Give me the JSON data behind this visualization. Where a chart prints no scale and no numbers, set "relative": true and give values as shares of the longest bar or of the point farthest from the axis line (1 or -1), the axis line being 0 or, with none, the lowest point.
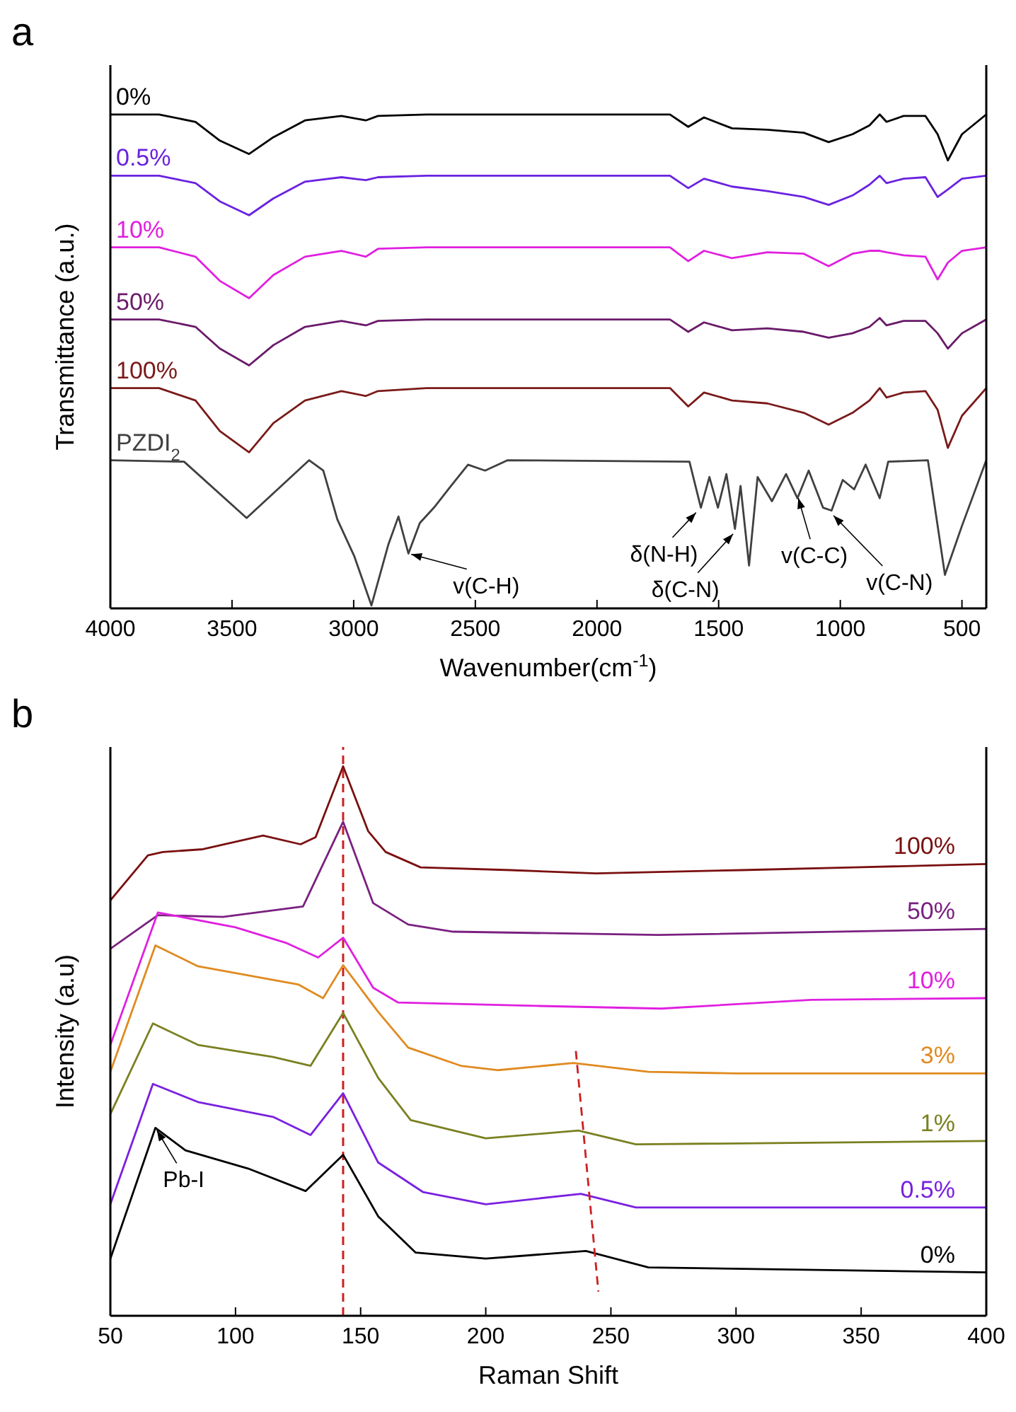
{
  "chart_data": [
    {
      "type": "line",
      "title": "a",
      "xlabel": "Wavenumber(cm$^{-1}$)",
      "ylabel": "Transmittance (a.u.)",
      "relative": true,
      "legend": false,
      "xlim": [
        4000,
        400
      ],
      "xticks": [
        4000,
        3500,
        3000,
        2500,
        2000,
        1500,
        1000,
        500
      ],
      "x": [
        4000,
        3800,
        3650,
        3550,
        3430,
        3330,
        3200,
        3050,
        2950,
        2900,
        2700,
        1700,
        1625,
        1560,
        1445,
        1300,
        1150,
        1048,
        950,
        880,
        838,
        810,
        740,
        650,
        600,
        558,
        500,
        400
      ],
      "series": [
        {
          "name": "0%",
          "color": "#000000",
          "values": [
            1.0,
            1.0,
            0.985,
            0.947,
            0.92,
            0.954,
            0.988,
            0.997,
            0.988,
            0.997,
            1.0,
            1.0,
            0.975,
            0.994,
            0.972,
            0.969,
            0.963,
            0.944,
            0.96,
            0.978,
            1.0,
            0.985,
            0.997,
            0.997,
            0.96,
            0.907,
            0.96,
            1.0
          ]
        },
        {
          "name": "0.5%",
          "color": "#6a22e0",
          "values": [
            0.876,
            0.876,
            0.861,
            0.824,
            0.796,
            0.83,
            0.864,
            0.873,
            0.867,
            0.873,
            0.876,
            0.876,
            0.851,
            0.87,
            0.854,
            0.845,
            0.833,
            0.817,
            0.836,
            0.858,
            0.876,
            0.861,
            0.87,
            0.873,
            0.833,
            0.848,
            0.87,
            0.876
          ]
        },
        {
          "name": "10%",
          "color": "#e020e0",
          "values": [
            0.731,
            0.731,
            0.712,
            0.663,
            0.628,
            0.675,
            0.712,
            0.724,
            0.712,
            0.728,
            0.731,
            0.731,
            0.703,
            0.724,
            0.709,
            0.721,
            0.718,
            0.693,
            0.718,
            0.724,
            0.724,
            0.721,
            0.715,
            0.712,
            0.666,
            0.7,
            0.724,
            0.731
          ]
        },
        {
          "name": "50%",
          "color": "#6a1a6a",
          "values": [
            0.585,
            0.585,
            0.57,
            0.526,
            0.492,
            0.533,
            0.57,
            0.582,
            0.573,
            0.582,
            0.585,
            0.585,
            0.56,
            0.579,
            0.563,
            0.567,
            0.56,
            0.548,
            0.557,
            0.57,
            0.588,
            0.573,
            0.582,
            0.582,
            0.557,
            0.526,
            0.557,
            0.585
          ]
        },
        {
          "name": "100%",
          "color": "#7a1a1a",
          "values": [
            0.446,
            0.446,
            0.421,
            0.359,
            0.316,
            0.375,
            0.421,
            0.44,
            0.43,
            0.44,
            0.446,
            0.446,
            0.409,
            0.437,
            0.421,
            0.415,
            0.396,
            0.372,
            0.396,
            0.421,
            0.446,
            0.427,
            0.437,
            0.44,
            0.402,
            0.325,
            0.39,
            0.446
          ]
        },
        {
          "name": "PZDI$_{2}$",
          "color": "#404040",
          "x": [
            4000,
            3697,
            3440,
            3183,
            3125,
            3067,
            2997,
            2927,
            2857,
            2816,
            2775,
            2728,
            2670,
            2600,
            2530,
            2460,
            2367,
            1620,
            1573,
            1538,
            1503,
            1468,
            1433,
            1410,
            1375,
            1340,
            1281,
            1223,
            1176,
            1130,
            1071,
            1036,
            990,
            943,
            896,
            838,
            803,
            640,
            570,
            500,
            400
          ],
          "values": [
            0.3,
            0.297,
            0.183,
            0.3,
            0.279,
            0.18,
            0.105,
            0.006,
            0.13,
            0.186,
            0.111,
            0.173,
            0.204,
            0.248,
            0.291,
            0.279,
            0.3,
            0.297,
            0.204,
            0.266,
            0.204,
            0.272,
            0.161,
            0.248,
            0.087,
            0.266,
            0.217,
            0.272,
            0.223,
            0.279,
            0.204,
            0.198,
            0.26,
            0.241,
            0.291,
            0.223,
            0.297,
            0.3,
            0.068,
            0.167,
            0.3
          ]
        }
      ],
      "annotations": [
        {
          "text": "v(C-H)",
          "x": 2775,
          "y": 0.111
        },
        {
          "text": "δ(N-H)",
          "x": 1585,
          "y": 0.198
        },
        {
          "text": "δ(C-N)",
          "x": 1433,
          "y": 0.155
        },
        {
          "text": "v(C-C)",
          "x": 1176,
          "y": 0.229
        },
        {
          "text": "v(C-N)",
          "x": 1036,
          "y": 0.192
        }
      ]
    },
    {
      "type": "line",
      "title": "b",
      "xlabel": "Raman Shift",
      "ylabel": "Intensity (a.u)",
      "relative": true,
      "legend": false,
      "xlim": [
        50,
        400
      ],
      "xticks": [
        50,
        100,
        150,
        200,
        250,
        300,
        350,
        400
      ],
      "series": [
        {
          "name": "100%",
          "color": "#7a1010",
          "x": [
            50,
            65,
            71,
            87,
            111,
            126,
            132,
            143,
            153,
            160,
            174,
            210,
            244,
            302,
            347,
            400
          ],
          "values": [
            0.756,
            0.838,
            0.844,
            0.849,
            0.874,
            0.858,
            0.871,
            1.0,
            0.882,
            0.844,
            0.816,
            0.811,
            0.805,
            0.811,
            0.816,
            0.822
          ]
        },
        {
          "name": "50%",
          "color": "#7a2080",
          "x": [
            50,
            69,
            95,
            127,
            143,
            155,
            169,
            187,
            269,
            400
          ],
          "values": [
            0.668,
            0.729,
            0.726,
            0.745,
            0.899,
            0.751,
            0.712,
            0.699,
            0.693,
            0.704
          ]
        },
        {
          "name": "10%",
          "color": "#e020e0",
          "x": [
            50,
            69,
            100,
            120,
            133,
            143,
            155,
            165,
            220,
            270,
            330,
            400
          ],
          "values": [
            0.493,
            0.734,
            0.707,
            0.679,
            0.652,
            0.688,
            0.597,
            0.57,
            0.564,
            0.559,
            0.575,
            0.578
          ]
        },
        {
          "name": "3%",
          "color": "#e08a20",
          "x": [
            50,
            68,
            85,
            125,
            135,
            143,
            157,
            169,
            190,
            205,
            235,
            265,
            300,
            400
          ],
          "values": [
            0.444,
            0.674,
            0.636,
            0.603,
            0.578,
            0.638,
            0.553,
            0.488,
            0.455,
            0.447,
            0.46,
            0.444,
            0.441,
            0.441
          ]
        },
        {
          "name": "1%",
          "color": "#7a8020",
          "x": [
            50,
            67,
            85,
            115,
            130,
            143,
            157,
            170,
            200,
            237,
            260,
            400
          ],
          "values": [
            0.367,
            0.532,
            0.493,
            0.471,
            0.455,
            0.551,
            0.433,
            0.356,
            0.323,
            0.337,
            0.312,
            0.318
          ]
        },
        {
          "name": "0.5%",
          "color": "#7a20e0",
          "x": [
            50,
            67,
            85,
            115,
            130,
            143,
            157,
            175,
            200,
            238,
            260,
            400
          ],
          "values": [
            0.203,
            0.422,
            0.389,
            0.362,
            0.329,
            0.405,
            0.279,
            0.225,
            0.203,
            0.222,
            0.197,
            0.197
          ]
        },
        {
          "name": "0%",
          "color": "#000000",
          "x": [
            50,
            68,
            80,
            105,
            128,
            143,
            157,
            172,
            200,
            240,
            265,
            400
          ],
          "values": [
            0.104,
            0.342,
            0.301,
            0.268,
            0.227,
            0.293,
            0.181,
            0.115,
            0.104,
            0.118,
            0.088,
            0.079
          ]
        },
        {
          "color": "#cc2020",
          "line_style": "dashed",
          "x": [
            236,
            245
          ],
          "values": [
            0.482,
            0.044
          ]
        }
      ],
      "ref_lines": [
        {
          "axis": "x",
          "value": 143,
          "color": "#cc2020",
          "line_style": "dashed"
        }
      ],
      "annotations": [
        {
          "text": "Pb-I",
          "x": 68,
          "y": 0.342
        }
      ]
    }
  ]
}
